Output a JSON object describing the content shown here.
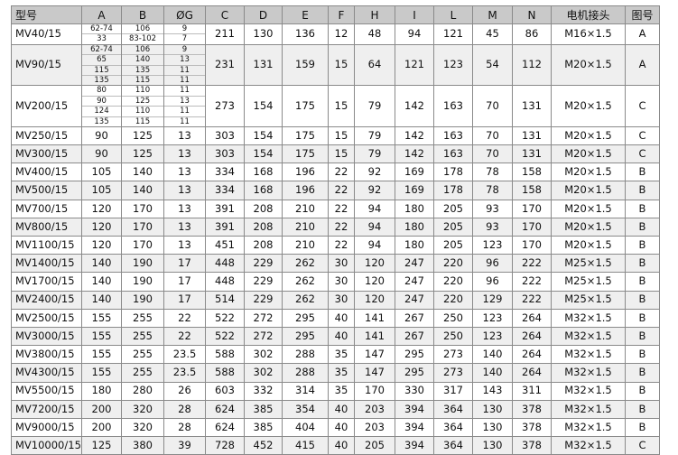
{
  "headers": [
    "型号",
    "A",
    "B",
    "ØG",
    "C",
    "D",
    "E",
    "F",
    "H",
    "I",
    "L",
    "M",
    "N",
    "电机接头",
    "图号"
  ],
  "multi_rows": [
    {
      "model": "MV40/15",
      "A": [
        "62-74",
        "33"
      ],
      "B": [
        "106",
        "83-102"
      ],
      "G": [
        "9",
        "7"
      ],
      "rest": [
        "211",
        "130",
        "136",
        "12",
        "48",
        "94",
        "121",
        "45",
        "86",
        "M16×1.5",
        "A"
      ]
    },
    {
      "model": "MV90/15",
      "A": [
        "62-74",
        "65",
        "115",
        "135"
      ],
      "B": [
        "106",
        "140",
        "135",
        "115"
      ],
      "G": [
        "9",
        "13",
        "11",
        "11"
      ],
      "rest": [
        "231",
        "131",
        "159",
        "15",
        "64",
        "121",
        "123",
        "54",
        "112",
        "M20×1.5",
        "A"
      ]
    },
    {
      "model": "MV200/15",
      "A": [
        "80",
        "90",
        "124",
        "135"
      ],
      "B": [
        "110",
        "125",
        "110",
        "115"
      ],
      "G": [
        "11",
        "13",
        "11",
        "11"
      ],
      "rest": [
        "273",
        "154",
        "175",
        "15",
        "79",
        "142",
        "163",
        "70",
        "131",
        "M20×1.5",
        "C"
      ]
    }
  ],
  "rows": [
    [
      "MV250/15",
      "90",
      "125",
      "13",
      "303",
      "154",
      "175",
      "15",
      "79",
      "142",
      "163",
      "70",
      "131",
      "M20×1.5",
      "C"
    ],
    [
      "MV300/15",
      "90",
      "125",
      "13",
      "303",
      "154",
      "175",
      "15",
      "79",
      "142",
      "163",
      "70",
      "131",
      "M20×1.5",
      "C"
    ],
    [
      "MV400/15",
      "105",
      "140",
      "13",
      "334",
      "168",
      "196",
      "22",
      "92",
      "169",
      "178",
      "78",
      "158",
      "M20×1.5",
      "B"
    ],
    [
      "MV500/15",
      "105",
      "140",
      "13",
      "334",
      "168",
      "196",
      "22",
      "92",
      "169",
      "178",
      "78",
      "158",
      "M20×1.5",
      "B"
    ],
    [
      "MV700/15",
      "120",
      "170",
      "13",
      "391",
      "208",
      "210",
      "22",
      "94",
      "180",
      "205",
      "93",
      "170",
      "M20×1.5",
      "B"
    ],
    [
      "MV800/15",
      "120",
      "170",
      "13",
      "391",
      "208",
      "210",
      "22",
      "94",
      "180",
      "205",
      "93",
      "170",
      "M20×1.5",
      "B"
    ],
    [
      "MV1100/15",
      "120",
      "170",
      "13",
      "451",
      "208",
      "210",
      "22",
      "94",
      "180",
      "205",
      "123",
      "170",
      "M20×1.5",
      "B"
    ],
    [
      "MV1400/15",
      "140",
      "190",
      "17",
      "448",
      "229",
      "262",
      "30",
      "120",
      "247",
      "220",
      "96",
      "222",
      "M25×1.5",
      "B"
    ],
    [
      "MV1700/15",
      "140",
      "190",
      "17",
      "448",
      "229",
      "262",
      "30",
      "120",
      "247",
      "220",
      "96",
      "222",
      "M25×1.5",
      "B"
    ],
    [
      "MV2400/15",
      "140",
      "190",
      "17",
      "514",
      "229",
      "262",
      "30",
      "120",
      "247",
      "220",
      "129",
      "222",
      "M25×1.5",
      "B"
    ],
    [
      "MV2500/15",
      "155",
      "255",
      "22",
      "522",
      "272",
      "295",
      "40",
      "141",
      "267",
      "250",
      "123",
      "264",
      "M32×1.5",
      "B"
    ],
    [
      "MV3000/15",
      "155",
      "255",
      "22",
      "522",
      "272",
      "295",
      "40",
      "141",
      "267",
      "250",
      "123",
      "264",
      "M32×1.5",
      "B"
    ],
    [
      "MV3800/15",
      "155",
      "255",
      "23.5",
      "588",
      "302",
      "288",
      "35",
      "147",
      "295",
      "273",
      "140",
      "264",
      "M32×1.5",
      "B"
    ],
    [
      "MV4300/15",
      "155",
      "255",
      "23.5",
      "588",
      "302",
      "288",
      "35",
      "147",
      "295",
      "273",
      "140",
      "264",
      "M32×1.5",
      "B"
    ],
    [
      "MV5500/15",
      "180",
      "280",
      "26",
      "603",
      "332",
      "314",
      "35",
      "170",
      "330",
      "317",
      "143",
      "311",
      "M32×1.5",
      "B"
    ],
    [
      "MV7200/15",
      "200",
      "320",
      "28",
      "624",
      "385",
      "354",
      "40",
      "203",
      "394",
      "364",
      "130",
      "378",
      "M32×1.5",
      "B"
    ],
    [
      "MV9000/15",
      "200",
      "320",
      "28",
      "624",
      "385",
      "404",
      "40",
      "203",
      "394",
      "364",
      "130",
      "378",
      "M32×1.5",
      "B"
    ],
    [
      "MV10000/15",
      "125",
      "380",
      "39",
      "728",
      "452",
      "415",
      "40",
      "205",
      "394",
      "364",
      "130",
      "378",
      "M32×1.5",
      "C"
    ]
  ]
}
